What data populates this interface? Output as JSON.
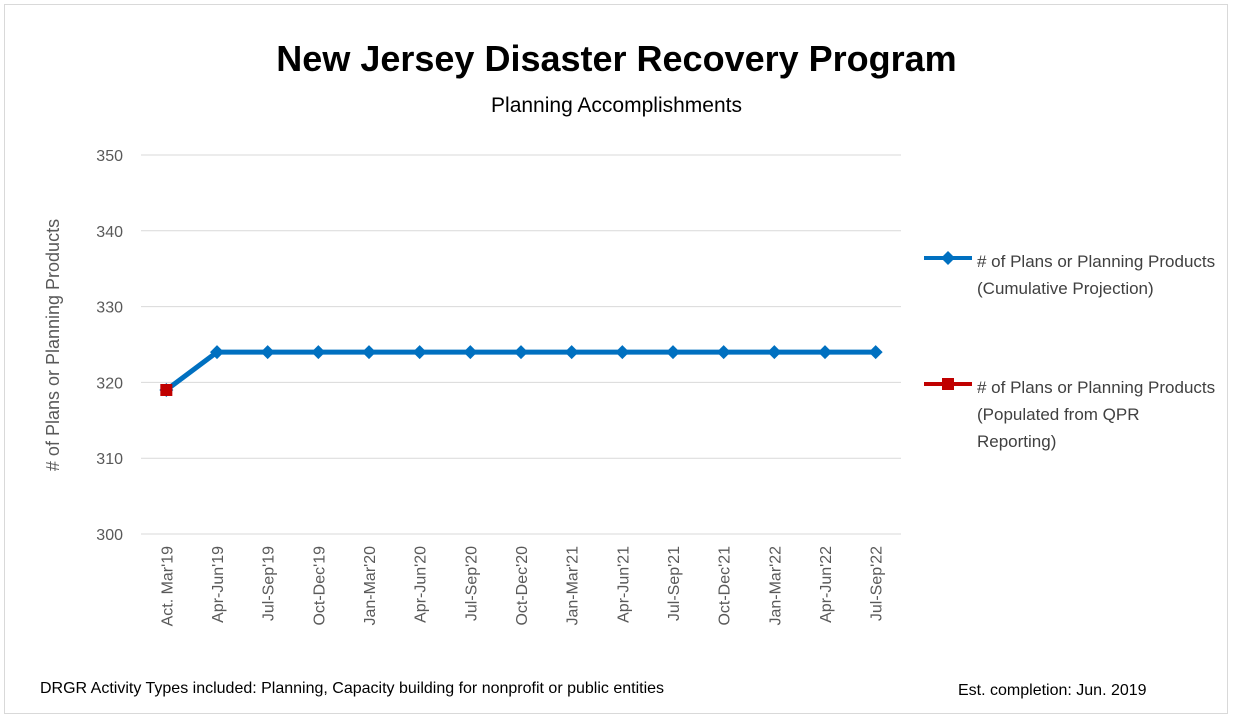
{
  "chart_data": {
    "type": "line",
    "title": "New Jersey Disaster Recovery Program",
    "subtitle": "Planning Accomplishments",
    "ylabel": "# of Plans or Planning Products",
    "xlabel": "",
    "ylim": [
      300,
      350
    ],
    "yticks": [
      300,
      310,
      320,
      330,
      340,
      350
    ],
    "grid": true,
    "legend_position": "right",
    "categories": [
      "Act. Mar'19",
      "Apr-Jun'19",
      "Jul-Sep'19",
      "Oct-Dec'19",
      "Jan-Mar'20",
      "Apr-Jun'20",
      "Jul-Sep'20",
      "Oct-Dec'20",
      "Jan-Mar'21",
      "Apr-Jun'21",
      "Jul-Sep'21",
      "Oct-Dec'21",
      "Jan-Mar'22",
      "Apr-Jun'22",
      "Jul-Sep'22"
    ],
    "series": [
      {
        "name": "# of Plans or Planning Products (Cumulative Projection)",
        "color": "#0070c0",
        "marker": "diamond",
        "values": [
          319,
          324,
          324,
          324,
          324,
          324,
          324,
          324,
          324,
          324,
          324,
          324,
          324,
          324,
          324
        ]
      },
      {
        "name": "# of Plans or Planning Products (Populated from QPR Reporting)",
        "color": "#c00000",
        "marker": "square",
        "values": [
          319,
          null,
          null,
          null,
          null,
          null,
          null,
          null,
          null,
          null,
          null,
          null,
          null,
          null,
          null
        ]
      }
    ]
  },
  "footer": {
    "activity_types": "DRGR Activity Types included: Planning, Capacity building for nonprofit or public entities",
    "completion": "Est. completion: Jun. 2019"
  }
}
